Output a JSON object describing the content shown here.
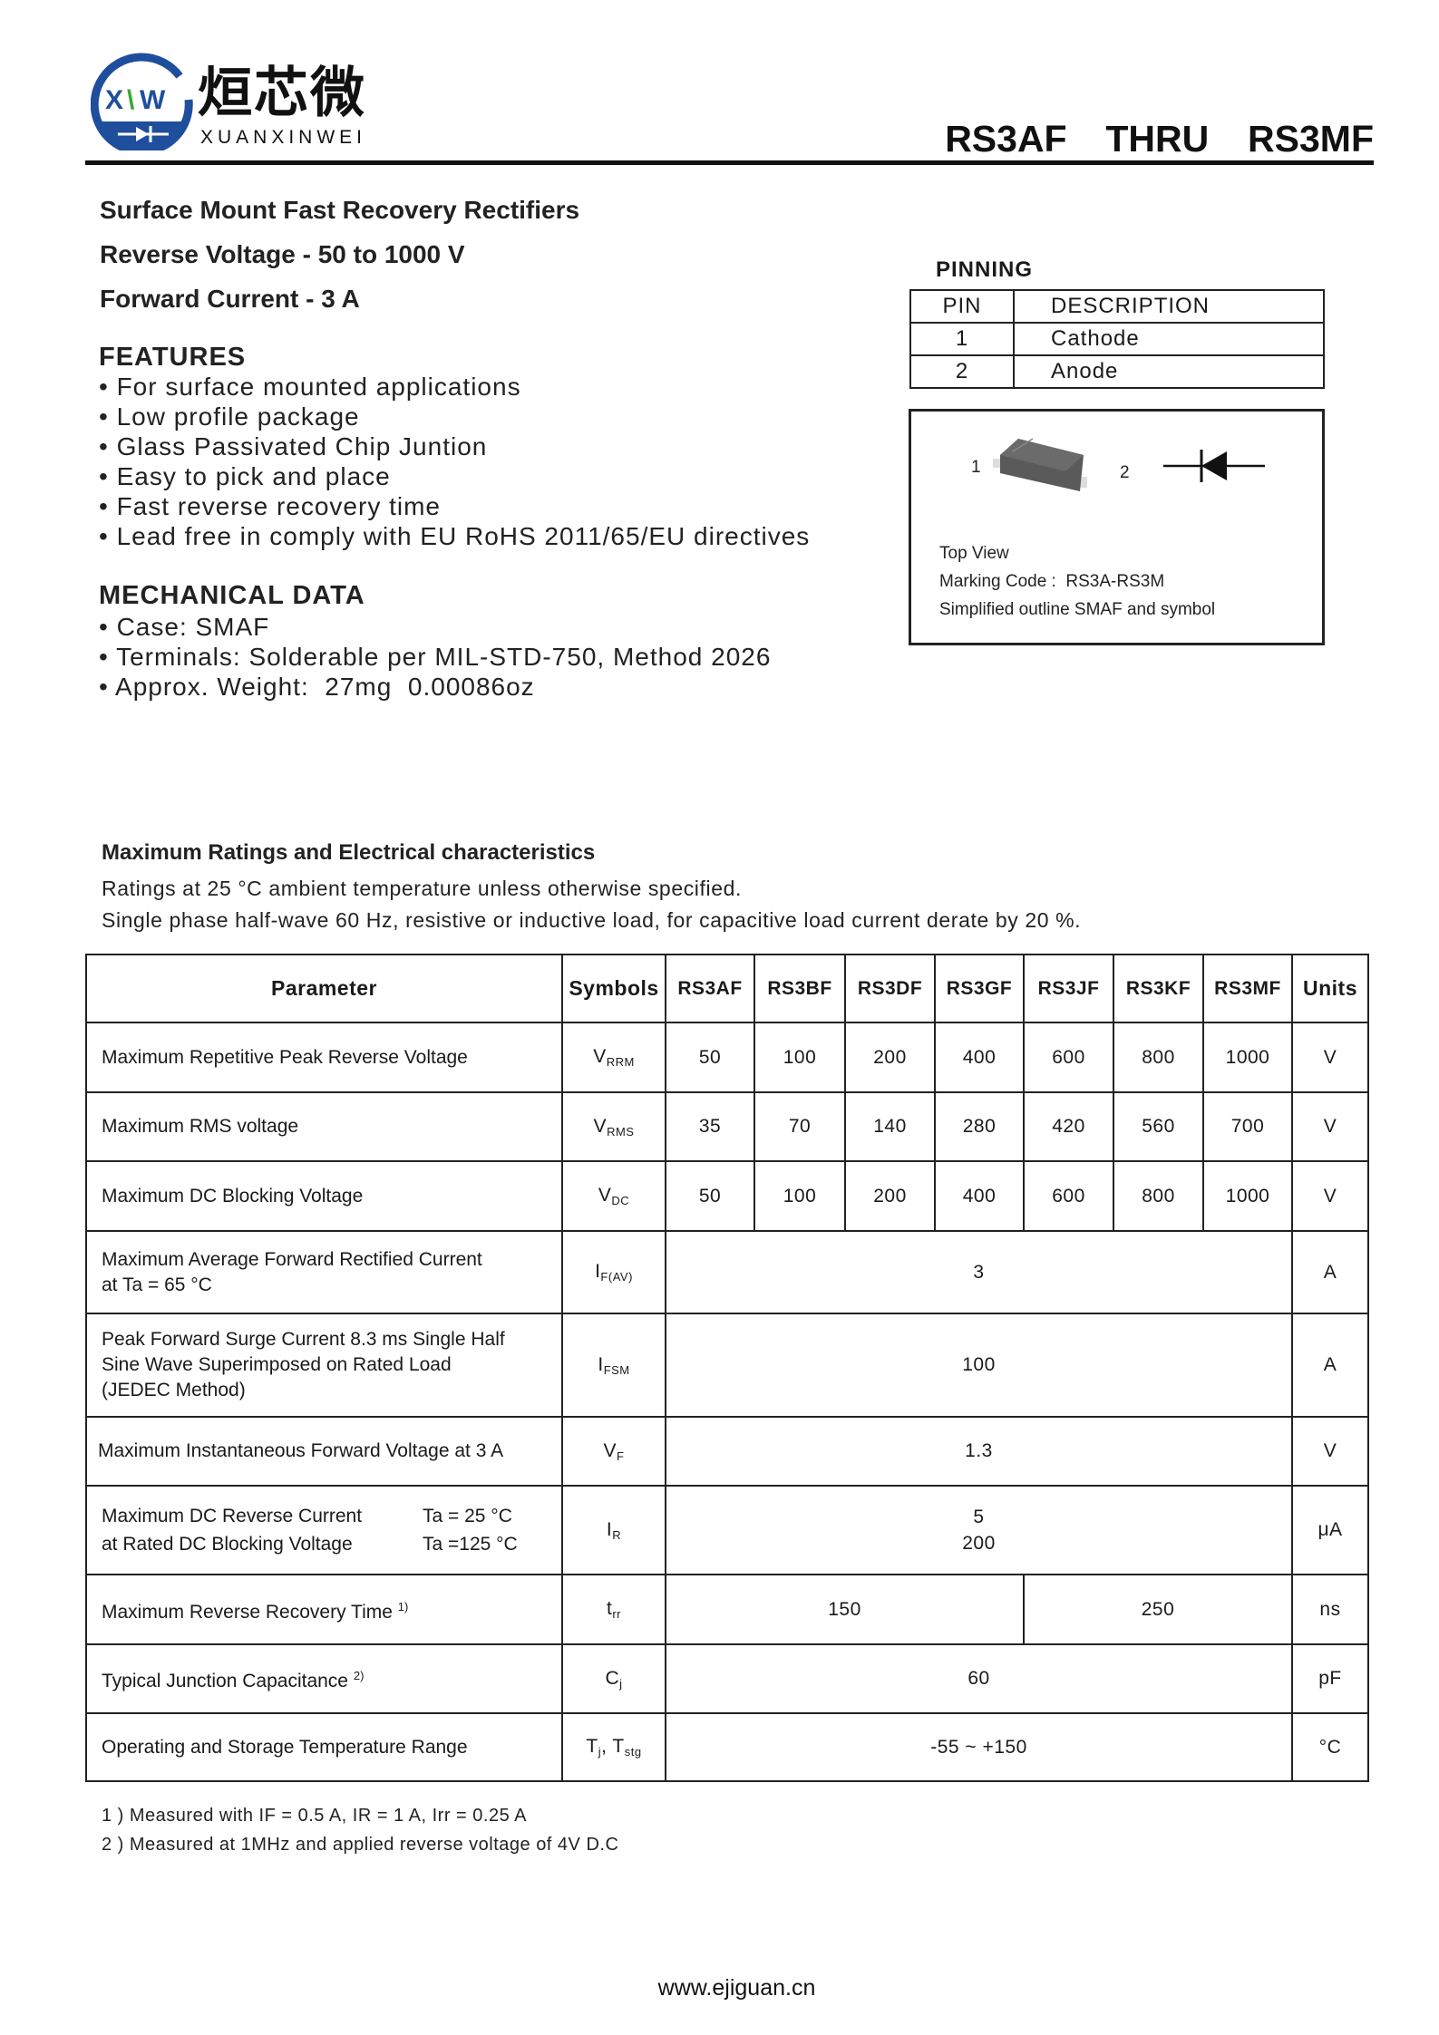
{
  "header": {
    "logo_text": "XW",
    "brand_cn": "烜芯微",
    "brand_en": "XUANXINWEI",
    "brand_color": "#1f4f9c",
    "brand_accent": "#3aa935",
    "part_title": "RS3AF  THRU  RS3MF"
  },
  "summary": {
    "line1": "Surface Mount Fast Recovery Rectifiers",
    "line2": "Reverse Voltage - 50 to 1000 V",
    "line3": "Forward Current - 3 A"
  },
  "features": {
    "heading": "FEATURES",
    "items": [
      "• For surface mounted applications",
      "• Low profile package",
      "• Glass Passivated Chip Juntion",
      "• Easy to pick and place",
      "• Fast reverse recovery time",
      "• Lead free in comply with EU RoHS 2011/65/EU directives"
    ]
  },
  "mechanical": {
    "heading": "MECHANICAL DATA",
    "items": [
      "• Case: SMAF",
      "• Terminals: Solderable per MIL-STD-750, Method 2026",
      "• Approx. Weight:  27mg  0.00086oz"
    ]
  },
  "pinning": {
    "heading": "PINNING",
    "col_pin": "PIN",
    "col_desc": "DESCRIPTION",
    "rows": [
      {
        "pin": "1",
        "desc": "Cathode"
      },
      {
        "pin": "2",
        "desc": "Anode"
      }
    ],
    "diagram": {
      "pin1": "1",
      "pin2": "2",
      "top_view": "Top View",
      "marking": "Marking Code :  RS3A-RS3M",
      "caption": "Simplified outline SMAF and symbol"
    }
  },
  "ratings": {
    "heading": "Maximum Ratings and Electrical characteristics",
    "note1": "Ratings at 25 °C ambient temperature unless otherwise specified.",
    "note2": "Single phase half-wave 60 Hz, resistive or inductive load, for capacitive load current derate by 20 %."
  },
  "table": {
    "headers": {
      "parameter": "Parameter",
      "symbols": "Symbols",
      "parts": [
        "RS3AF",
        "RS3BF",
        "RS3DF",
        "RS3GF",
        "RS3JF",
        "RS3KF",
        "RS3MF"
      ],
      "units": "Units"
    },
    "vrrm": {
      "param": "Maximum Repetitive Peak Reverse Voltage",
      "sym": "V",
      "sub": "RRM",
      "values": [
        "50",
        "100",
        "200",
        "400",
        "600",
        "800",
        "1000"
      ],
      "unit": "V"
    },
    "vrms": {
      "param": "Maximum RMS voltage",
      "sym": "V",
      "sub": "RMS",
      "values": [
        "35",
        "70",
        "140",
        "280",
        "420",
        "560",
        "700"
      ],
      "unit": "V"
    },
    "vdc": {
      "param": "Maximum DC Blocking Voltage",
      "sym": "V",
      "sub": "DC",
      "values": [
        "50",
        "100",
        "200",
        "400",
        "600",
        "800",
        "1000"
      ],
      "unit": "V"
    },
    "ifav": {
      "param1": "Maximum Average Forward Rectified Current",
      "param2": "at Ta = 65 °C",
      "sym": "I",
      "sub": "F(AV)",
      "value": "3",
      "unit": "A"
    },
    "ifsm": {
      "param1": "Peak Forward Surge Current 8.3 ms Single Half",
      "param2": "Sine Wave Superimposed on Rated Load",
      "param3": "(JEDEC Method)",
      "sym": "I",
      "sub": "FSM",
      "value": "100",
      "unit": "A"
    },
    "vf": {
      "param": "Maximum Instantaneous Forward Voltage at 3 A",
      "sym": "V",
      "sub": "F",
      "value": "1.3",
      "unit": "V"
    },
    "ir": {
      "param1": "Maximum DC Reverse Current",
      "cond1": "Ta = 25 °C",
      "param2": "at Rated DC Blocking Voltage",
      "cond2": "Ta =125 °C",
      "sym": "I",
      "sub": "R",
      "value1": "5",
      "value2": "200",
      "unit": "μA"
    },
    "trr": {
      "param": "Maximum Reverse Recovery Time",
      "note": "1)",
      "sym": "t",
      "sub": "rr",
      "value_a": "150",
      "value_b": "250",
      "unit": "ns"
    },
    "cj": {
      "param": "Typical Junction Capacitance",
      "note": "2)",
      "sym": "C",
      "sub": "j",
      "value": "60",
      "unit": "pF"
    },
    "temp": {
      "param": "Operating and Storage Temperature Range",
      "sym1": "T",
      "sub1": "j",
      "sym2": ", T",
      "sub2": "stg",
      "value": "-55 ~ +150",
      "unit": "°C"
    }
  },
  "footnotes": [
    "1 ) Measured with IF = 0.5 A, IR = 1 A, Irr = 0.25 A",
    "2 ) Measured at 1MHz and applied reverse voltage of 4V D.C"
  ],
  "footer": {
    "url": "www.ejiguan.cn"
  }
}
